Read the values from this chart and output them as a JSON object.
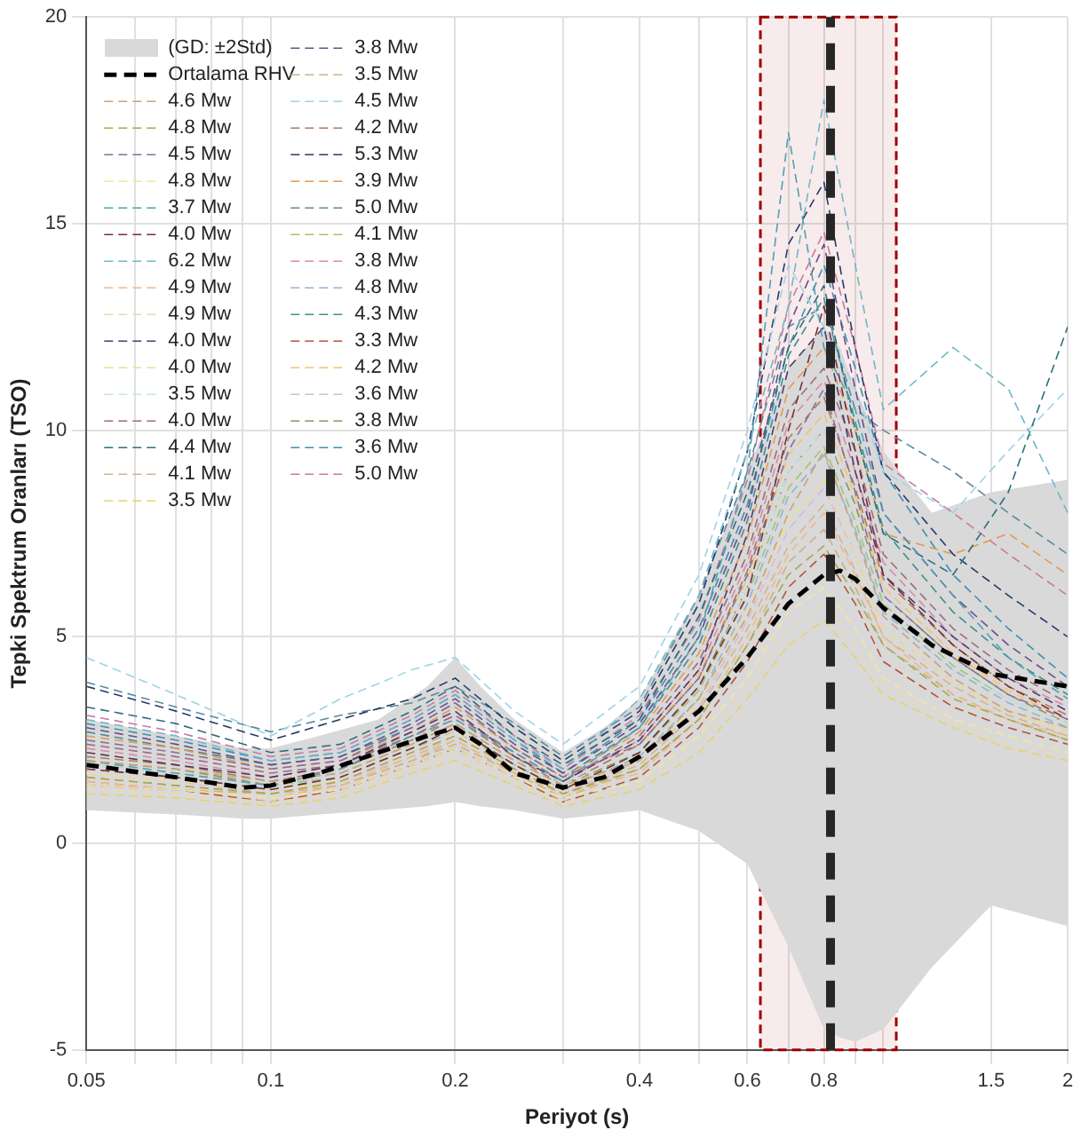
{
  "chart_data": {
    "type": "line",
    "xlabel": "Periyot (s)",
    "ylabel": "Tepki Spektrum Oranları (TSO)",
    "log": "x",
    "xlim": [
      0.05,
      2
    ],
    "ylim": [
      -5,
      20
    ],
    "xticks": [
      0.05,
      {
        "value": 0.06,
        "label": null
      },
      {
        "value": 0.07,
        "label": null
      },
      {
        "value": 0.08,
        "label": null
      },
      {
        "value": 0.09,
        "label": null
      },
      0.1,
      0.2,
      {
        "value": 0.3,
        "label": null
      },
      0.4,
      {
        "value": 0.5,
        "label": null
      },
      0.6,
      {
        "value": 0.7,
        "label": null
      },
      0.8,
      {
        "value": 0.9,
        "label": null
      },
      {
        "value": 1,
        "label": null
      },
      1.5,
      2
    ],
    "yticks": [
      -5,
      0,
      5,
      10,
      15,
      20
    ],
    "grid": true,
    "legend": "top left",
    "line_style": "dashed",
    "x": [
      0.05,
      0.07,
      0.1,
      0.13,
      0.17,
      0.2,
      0.25,
      0.3,
      0.4,
      0.5,
      0.6,
      0.7,
      0.8,
      0.9,
      1.0,
      1.3,
      1.6,
      2.0
    ],
    "bands": [
      {
        "axis": "x",
        "from": 0.63,
        "to": 1.05,
        "color": "#a00000"
      }
    ],
    "annotations": [
      "(GD: ±2Std)"
    ],
    "ref_lines": [
      {
        "axis": "x",
        "value": 0.82,
        "color": "#262626",
        "line_style": "dashed"
      }
    ],
    "series": [
      {
        "name": "Ortalama RHV",
        "type": "line",
        "color": "#000000",
        "line_style": "dashed",
        "x": [
          0.05,
          0.07,
          0.09,
          0.1,
          0.12,
          0.15,
          0.18,
          0.2,
          0.22,
          0.25,
          0.3,
          0.35,
          0.4,
          0.5,
          0.6,
          0.7,
          0.8,
          0.85,
          0.9,
          1.0,
          1.2,
          1.5,
          2.0
        ],
        "values": [
          1.9,
          1.6,
          1.35,
          1.4,
          1.7,
          2.2,
          2.6,
          2.8,
          2.4,
          1.7,
          1.35,
          1.6,
          2.1,
          3.2,
          4.5,
          5.8,
          6.5,
          6.6,
          6.4,
          5.7,
          4.8,
          4.1,
          3.8
        ],
        "lower": [
          0.8,
          0.7,
          0.6,
          0.6,
          0.7,
          0.8,
          0.9,
          1.0,
          0.9,
          0.8,
          0.6,
          0.7,
          0.8,
          0.3,
          -0.5,
          -2.5,
          -4.5,
          -4.7,
          -4.8,
          -4.5,
          -3.0,
          -1.5,
          -2.0
        ],
        "upper": [
          3.0,
          2.6,
          2.3,
          2.3,
          2.6,
          3.0,
          3.8,
          4.5,
          3.8,
          3.0,
          2.2,
          2.8,
          3.5,
          6.0,
          9.0,
          11.5,
          12.5,
          12.0,
          11.0,
          9.5,
          8.0,
          8.5,
          8.8
        ]
      },
      {
        "name": "4.6 Mw",
        "color": "#c8a27a",
        "values": [
          2.0,
          1.8,
          1.5,
          1.7,
          2.4,
          2.9,
          2.0,
          1.4,
          2.0,
          3.5,
          5.5,
          8.0,
          9.5,
          7.5,
          5.5,
          4.0,
          3.2,
          2.8
        ]
      },
      {
        "name": "4.8 Mw",
        "color": "#a9a84e",
        "values": [
          1.6,
          1.4,
          1.2,
          1.5,
          2.2,
          2.6,
          1.8,
          1.2,
          1.8,
          3.0,
          4.8,
          6.5,
          7.2,
          6.0,
          4.8,
          3.5,
          3.0,
          2.5
        ]
      },
      {
        "name": "4.5 Mw",
        "color": "#8c6d9e",
        "values": [
          2.5,
          2.2,
          1.8,
          2.0,
          2.8,
          3.4,
          2.3,
          1.6,
          2.4,
          4.0,
          6.5,
          9.5,
          11.0,
          8.5,
          6.0,
          4.5,
          3.6,
          3.0
        ]
      },
      {
        "name": "4.8 Mw",
        "color": "#f2e6a0",
        "values": [
          1.4,
          1.3,
          1.1,
          1.3,
          1.9,
          2.3,
          1.6,
          1.1,
          1.5,
          2.6,
          4.0,
          5.6,
          6.2,
          5.2,
          4.0,
          3.0,
          2.6,
          2.2
        ]
      },
      {
        "name": "3.7 Mw",
        "color": "#4f9fb5",
        "values": [
          2.0,
          1.7,
          1.4,
          1.8,
          2.6,
          3.0,
          2.2,
          1.5,
          2.8,
          5.0,
          9.0,
          17.2,
          12.0,
          10.5,
          8.0,
          6.0,
          4.5,
          3.5
        ]
      },
      {
        "name": "4.0 Mw",
        "color": "#7b2d3b",
        "values": [
          1.8,
          1.6,
          1.3,
          1.6,
          2.3,
          2.8,
          1.9,
          1.3,
          2.2,
          3.8,
          6.0,
          10.0,
          13.0,
          9.5,
          6.5,
          4.8,
          3.8,
          3.0
        ]
      },
      {
        "name": "6.2 Mw",
        "color": "#6fb7c9",
        "values": [
          3.0,
          2.6,
          2.0,
          2.2,
          3.0,
          3.6,
          2.5,
          1.8,
          3.5,
          6.0,
          9.5,
          13.0,
          18.0,
          14.0,
          10.5,
          12.0,
          11.0,
          8.0
        ]
      },
      {
        "name": "4.9 Mw",
        "color": "#f0b88a",
        "values": [
          1.5,
          1.3,
          1.1,
          1.4,
          2.1,
          2.5,
          1.7,
          1.2,
          1.7,
          3.0,
          5.0,
          7.0,
          8.0,
          6.5,
          5.0,
          3.6,
          3.0,
          2.6
        ]
      },
      {
        "name": "4.9 Mw",
        "color": "#e8d9b0",
        "values": [
          1.3,
          1.2,
          1.0,
          1.2,
          1.8,
          2.2,
          1.5,
          1.0,
          1.4,
          2.5,
          3.8,
          5.2,
          5.8,
          4.8,
          3.8,
          2.9,
          2.4,
          2.1
        ]
      },
      {
        "name": "4.0 Mw",
        "color": "#4b3a6e",
        "values": [
          2.2,
          1.9,
          1.6,
          1.9,
          2.7,
          3.2,
          2.1,
          1.5,
          2.5,
          4.2,
          7.5,
          11.5,
          12.5,
          9.0,
          6.5,
          5.0,
          4.0,
          3.2
        ]
      },
      {
        "name": "4.0 Mw",
        "color": "#efe08a",
        "values": [
          1.7,
          1.5,
          1.3,
          1.5,
          2.2,
          2.7,
          1.8,
          1.3,
          2.0,
          3.4,
          5.6,
          7.8,
          8.8,
          7.0,
          5.2,
          3.9,
          3.2,
          2.7
        ]
      },
      {
        "name": "3.5 Mw",
        "color": "#bfe6ef",
        "values": [
          1.9,
          1.7,
          1.4,
          1.7,
          2.4,
          3.0,
          2.0,
          1.4,
          2.3,
          3.9,
          6.2,
          9.0,
          10.0,
          8.0,
          6.0,
          4.4,
          3.5,
          2.9
        ]
      },
      {
        "name": "4.0 Mw",
        "color": "#9e6b7a",
        "values": [
          2.4,
          2.1,
          1.7,
          1.9,
          2.6,
          3.1,
          2.2,
          1.5,
          2.6,
          4.4,
          7.0,
          10.5,
          11.5,
          9.5,
          7.0,
          5.2,
          4.2,
          3.4
        ]
      },
      {
        "name": "4.4 Mw",
        "color": "#2e6e7e",
        "values": [
          3.3,
          2.9,
          2.2,
          2.4,
          3.2,
          3.8,
          2.6,
          1.9,
          3.0,
          5.5,
          8.5,
          12.0,
          13.5,
          10.0,
          7.5,
          6.5,
          8.5,
          12.5
        ]
      },
      {
        "name": "4.1 Mw",
        "color": "#d4b48c",
        "values": [
          1.6,
          1.4,
          1.2,
          1.4,
          2.0,
          2.5,
          1.7,
          1.2,
          1.9,
          3.2,
          5.2,
          7.2,
          8.2,
          6.6,
          5.0,
          3.8,
          3.1,
          2.6
        ]
      },
      {
        "name": "3.5 Mw",
        "color": "#e6d36b",
        "values": [
          1.2,
          1.1,
          0.9,
          1.1,
          1.7,
          2.0,
          1.4,
          0.9,
          1.3,
          2.2,
          3.5,
          4.8,
          5.4,
          4.5,
          3.6,
          2.8,
          2.3,
          2.0
        ]
      },
      {
        "name": "3.8 Mw",
        "color": "#6a4c8c",
        "values": [
          2.8,
          2.4,
          1.9,
          2.1,
          2.9,
          3.5,
          2.4,
          1.7,
          2.9,
          5.0,
          8.0,
          12.5,
          14.5,
          11.0,
          8.0,
          6.0,
          4.8,
          3.8
        ]
      },
      {
        "name": "3.5 Mw",
        "color": "#c9b27e",
        "values": [
          1.5,
          1.3,
          1.2,
          1.4,
          2.0,
          2.4,
          1.7,
          1.1,
          1.8,
          3.0,
          4.8,
          6.8,
          7.6,
          6.2,
          4.8,
          3.6,
          3.0,
          2.5
        ]
      },
      {
        "name": "4.5 Mw",
        "color": "#9fd3e6",
        "values": [
          4.5,
          3.6,
          2.6,
          3.5,
          4.2,
          4.5,
          3.2,
          2.4,
          3.8,
          6.5,
          10.0,
          14.0,
          12.5,
          11.0,
          9.0,
          8.0,
          9.5,
          11.0
        ]
      },
      {
        "name": "4.2 Mw",
        "color": "#b07a5a",
        "values": [
          2.1,
          1.9,
          1.5,
          1.8,
          2.5,
          3.0,
          2.1,
          1.4,
          2.4,
          4.0,
          6.6,
          9.8,
          10.8,
          8.6,
          6.4,
          4.8,
          3.8,
          3.1
        ]
      },
      {
        "name": "5.3 Mw",
        "color": "#243a6b",
        "values": [
          3.8,
          3.2,
          2.5,
          3.0,
          3.5,
          4.0,
          2.8,
          2.0,
          3.2,
          5.8,
          9.5,
          14.5,
          16.0,
          12.0,
          9.0,
          7.0,
          6.0,
          5.0
        ]
      },
      {
        "name": "3.9 Mw",
        "color": "#e39a4f",
        "values": [
          2.6,
          2.3,
          1.8,
          2.0,
          2.7,
          3.3,
          2.3,
          1.6,
          2.7,
          4.6,
          7.4,
          11.0,
          12.0,
          10.0,
          7.5,
          7.0,
          7.5,
          6.5
        ]
      },
      {
        "name": "5.0 Mw",
        "color": "#5a8a9e",
        "values": [
          3.9,
          3.3,
          2.7,
          3.1,
          3.4,
          3.8,
          2.9,
          2.1,
          3.3,
          6.0,
          9.0,
          12.5,
          13.0,
          10.5,
          10.0,
          9.0,
          8.0,
          7.0
        ]
      },
      {
        "name": "4.1 Mw",
        "color": "#a3c46b",
        "values": [
          1.9,
          1.7,
          1.4,
          1.6,
          2.3,
          2.8,
          1.9,
          1.3,
          2.2,
          3.7,
          6.0,
          8.6,
          9.6,
          7.8,
          5.8,
          4.3,
          3.5,
          2.9
        ]
      },
      {
        "name": "3.8 Mw",
        "color": "#d98aa8",
        "values": [
          2.3,
          2.0,
          1.6,
          1.9,
          2.6,
          3.1,
          2.1,
          1.5,
          2.5,
          4.2,
          6.8,
          10.2,
          11.2,
          9.0,
          6.8,
          5.0,
          4.0,
          3.3
        ]
      },
      {
        "name": "4.8 Mw",
        "color": "#8fb3d9",
        "values": [
          1.8,
          1.6,
          1.3,
          1.6,
          2.3,
          2.7,
          1.9,
          1.3,
          2.1,
          3.5,
          5.8,
          8.4,
          9.4,
          7.6,
          5.6,
          4.2,
          3.4,
          2.8
        ]
      },
      {
        "name": "4.3 Mw",
        "color": "#3f8f8f",
        "values": [
          2.7,
          2.3,
          1.9,
          2.1,
          2.8,
          3.4,
          2.3,
          1.6,
          2.8,
          4.8,
          7.8,
          11.8,
          13.2,
          10.2,
          7.6,
          5.6,
          4.5,
          3.6
        ]
      },
      {
        "name": "3.3 Mw",
        "color": "#b5533c",
        "values": [
          1.4,
          1.3,
          1.0,
          1.3,
          1.9,
          2.3,
          1.6,
          1.0,
          1.6,
          2.8,
          4.4,
          6.2,
          7.0,
          5.8,
          4.4,
          3.3,
          2.8,
          2.4
        ]
      },
      {
        "name": "4.2 Mw",
        "color": "#f2c36b",
        "values": [
          2.2,
          1.9,
          1.5,
          1.8,
          2.5,
          3.0,
          2.0,
          1.4,
          2.4,
          4.1,
          6.4,
          9.4,
          10.4,
          8.4,
          6.2,
          4.6,
          3.7,
          3.0
        ]
      },
      {
        "name": "3.6 Mw",
        "color": "#d7b8e0",
        "values": [
          1.7,
          1.5,
          1.2,
          1.5,
          2.1,
          2.6,
          1.8,
          1.2,
          2.0,
          3.3,
          5.4,
          7.6,
          8.6,
          7.0,
          5.2,
          3.9,
          3.2,
          2.7
        ]
      },
      {
        "name": "3.8 Mw",
        "color": "#a08c5a",
        "values": [
          2.0,
          1.8,
          1.4,
          1.7,
          2.4,
          2.9,
          2.0,
          1.4,
          2.2,
          3.8,
          6.2,
          9.0,
          10.0,
          8.2,
          6.0,
          4.5,
          3.6,
          2.9
        ]
      },
      {
        "name": "3.6 Mw",
        "color": "#3d8fb0",
        "values": [
          2.9,
          2.5,
          2.0,
          2.2,
          3.0,
          3.6,
          2.5,
          1.7,
          3.0,
          5.2,
          8.2,
          12.0,
          14.0,
          11.5,
          9.0,
          6.5,
          5.2,
          4.0
        ]
      },
      {
        "name": "5.0 Mw",
        "color": "#c67aa0",
        "values": [
          3.1,
          2.7,
          2.1,
          2.3,
          3.1,
          3.7,
          2.6,
          1.8,
          3.1,
          5.4,
          8.8,
          13.0,
          14.8,
          12.0,
          9.2,
          8.0,
          7.0,
          6.0
        ]
      }
    ]
  }
}
